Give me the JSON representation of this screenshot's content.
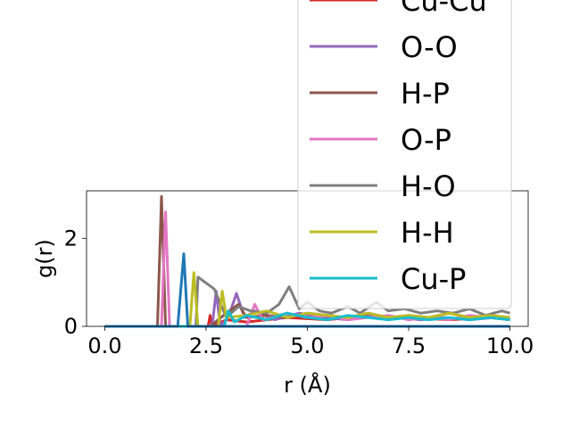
{
  "chart_data": {
    "type": "line",
    "xlabel": "r (Å)",
    "ylabel": "g(r)",
    "xlim": [
      -0.45,
      10.45
    ],
    "ylim": [
      0,
      3.08
    ],
    "xticks": [
      0.0,
      2.5,
      5.0,
      7.5,
      10.0
    ],
    "xtick_labels": [
      "0.0",
      "2.5",
      "5.0",
      "7.5",
      "10.0"
    ],
    "yticks": [
      0,
      2
    ],
    "ytick_labels": [
      "0",
      "2"
    ],
    "grid": false,
    "legend_position": "upper right",
    "series": [
      {
        "name": "Cu-Cu",
        "color": "#d62728",
        "x": [
          0,
          2.55,
          2.6,
          2.65,
          3.0,
          3.5,
          4.5,
          5.5,
          6.5,
          7.5,
          8.5,
          9.5,
          10
        ],
        "y": [
          0,
          0,
          0.25,
          0,
          0.15,
          0.1,
          0.2,
          0.15,
          0.25,
          0.2,
          0.15,
          0.2,
          0.15
        ]
      },
      {
        "name": "O-O",
        "color": "#9467bd",
        "x": [
          0,
          2.65,
          2.75,
          2.85,
          3.05,
          3.25,
          3.45,
          3.7,
          4.2,
          4.8,
          5.4,
          6.0,
          6.6,
          7.2,
          7.8,
          8.4,
          9.0,
          9.6,
          10
        ],
        "y": [
          0,
          0,
          0.8,
          0,
          0.2,
          0.75,
          0.2,
          0.35,
          0.15,
          0.3,
          0.2,
          0.15,
          0.25,
          0.2,
          0.15,
          0.2,
          0.15,
          0.2,
          0.15
        ]
      },
      {
        "name": "H-P",
        "color": "#8c564b",
        "x": [
          0,
          1.3,
          1.4,
          1.5,
          2.6,
          3.0,
          3.3,
          3.5,
          4.0,
          4.5,
          5.0,
          5.5,
          6.0,
          6.5,
          7.0,
          7.5,
          8.0,
          8.5,
          9.0,
          9.5,
          10
        ],
        "y": [
          0,
          0,
          2.95,
          0,
          0,
          0.3,
          0.5,
          0.2,
          0.25,
          0.2,
          0.3,
          0.25,
          0.2,
          0.3,
          0.2,
          0.25,
          0.2,
          0.3,
          0.2,
          0.25,
          0.2
        ]
      },
      {
        "name": "O-P",
        "color": "#e377c2",
        "x": [
          0,
          1.4,
          1.5,
          1.6,
          3.5,
          3.7,
          3.9,
          4.5,
          5.0,
          5.5,
          6.0,
          6.5,
          7.0,
          7.5,
          8.0,
          8.5,
          9.0,
          9.5,
          10
        ],
        "y": [
          0,
          0,
          2.6,
          0,
          0,
          0.5,
          0.15,
          0.3,
          0.2,
          0.25,
          0.15,
          0.2,
          0.25,
          0.15,
          0.2,
          0.15,
          0.25,
          0.2,
          0.15
        ]
      },
      {
        "name": "H-O",
        "color": "#7f7f7f",
        "x": [
          0,
          2.25,
          2.3,
          2.7,
          3.0,
          3.3,
          3.6,
          4.0,
          4.3,
          4.55,
          4.8,
          5.0,
          5.3,
          5.6,
          6.0,
          6.3,
          6.7,
          7.0,
          7.4,
          7.8,
          8.2,
          8.6,
          9.0,
          9.4,
          9.8,
          10
        ],
        "y": [
          0,
          0,
          1.12,
          0.85,
          0.2,
          0.45,
          0.35,
          0.3,
          0.5,
          0.9,
          0.4,
          0.55,
          0.35,
          0.3,
          0.45,
          0.3,
          0.55,
          0.35,
          0.4,
          0.3,
          0.35,
          0.3,
          0.4,
          0.25,
          0.35,
          0.3
        ]
      },
      {
        "name": "H-H",
        "color": "#bcbd22",
        "x": [
          0,
          2.1,
          2.2,
          2.3,
          2.8,
          2.9,
          3.0,
          3.5,
          4.0,
          4.5,
          5.0,
          5.5,
          6.0,
          6.5,
          7.0,
          7.5,
          8.0,
          8.5,
          9.0,
          9.5,
          10
        ],
        "y": [
          0,
          0,
          1.22,
          0,
          0,
          0.8,
          0.2,
          0.25,
          0.35,
          0.2,
          0.3,
          0.25,
          0.2,
          0.3,
          0.2,
          0.25,
          0.2,
          0.3,
          0.2,
          0.25,
          0.2
        ]
      },
      {
        "name": "Cu-P",
        "color": "#17becf",
        "x": [
          0,
          2.95,
          3.05,
          3.2,
          3.5,
          4.0,
          4.5,
          5.0,
          5.5,
          6.0,
          6.5,
          7.0,
          7.5,
          8.0,
          8.5,
          9.0,
          9.5,
          10
        ],
        "y": [
          0,
          0,
          0.35,
          0.1,
          0.25,
          0.15,
          0.3,
          0.2,
          0.15,
          0.25,
          0.2,
          0.15,
          0.2,
          0.15,
          0.2,
          0.15,
          0.2,
          0.15
        ]
      },
      {
        "name": "",
        "color": "#1f77b4",
        "x": [
          0,
          1.8,
          1.95,
          2.05,
          10
        ],
        "y": [
          0,
          0,
          1.65,
          0,
          0
        ]
      }
    ]
  }
}
